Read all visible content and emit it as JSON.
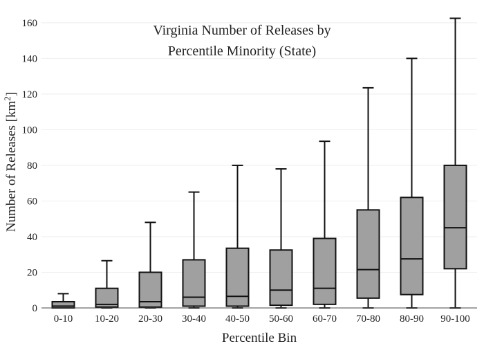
{
  "chart_data": {
    "type": "box",
    "title": [
      "Virginia Number of Releases by",
      "Percentile Minority (State)"
    ],
    "xlabel": "Percentile Bin",
    "ylabel": {
      "main": "Number of Releases  [km",
      "sup": "2",
      "end": "]"
    },
    "ylim": [
      0,
      165
    ],
    "yticks": [
      0,
      20,
      40,
      60,
      80,
      100,
      120,
      140,
      160
    ],
    "grid": true,
    "legend": "none",
    "box_color": "#a0a0a0",
    "categories": [
      "0-10",
      "10-20",
      "20-30",
      "30-40",
      "40-50",
      "50-60",
      "60-70",
      "70-80",
      "80-90",
      "90-100"
    ],
    "boxes": [
      {
        "min": 0,
        "q1": 0,
        "median": 1,
        "q3": 3.5,
        "max": 8
      },
      {
        "min": 0,
        "q1": 0.5,
        "median": 2,
        "q3": 11,
        "max": 26.5
      },
      {
        "min": 0,
        "q1": 0.5,
        "median": 3.5,
        "q3": 20,
        "max": 48
      },
      {
        "min": 0,
        "q1": 1,
        "median": 6,
        "q3": 27,
        "max": 65
      },
      {
        "min": 0,
        "q1": 1,
        "median": 6.5,
        "q3": 33.5,
        "max": 80
      },
      {
        "min": 0,
        "q1": 1.5,
        "median": 10,
        "q3": 32.5,
        "max": 78
      },
      {
        "min": 0,
        "q1": 2,
        "median": 11,
        "q3": 39,
        "max": 93.5
      },
      {
        "min": 0,
        "q1": 5.5,
        "median": 21.5,
        "q3": 55,
        "max": 123.5
      },
      {
        "min": 0,
        "q1": 7.5,
        "median": 27.5,
        "q3": 62,
        "max": 140
      },
      {
        "min": 0,
        "q1": 22,
        "median": 45,
        "q3": 80,
        "max": 162.5
      }
    ]
  }
}
